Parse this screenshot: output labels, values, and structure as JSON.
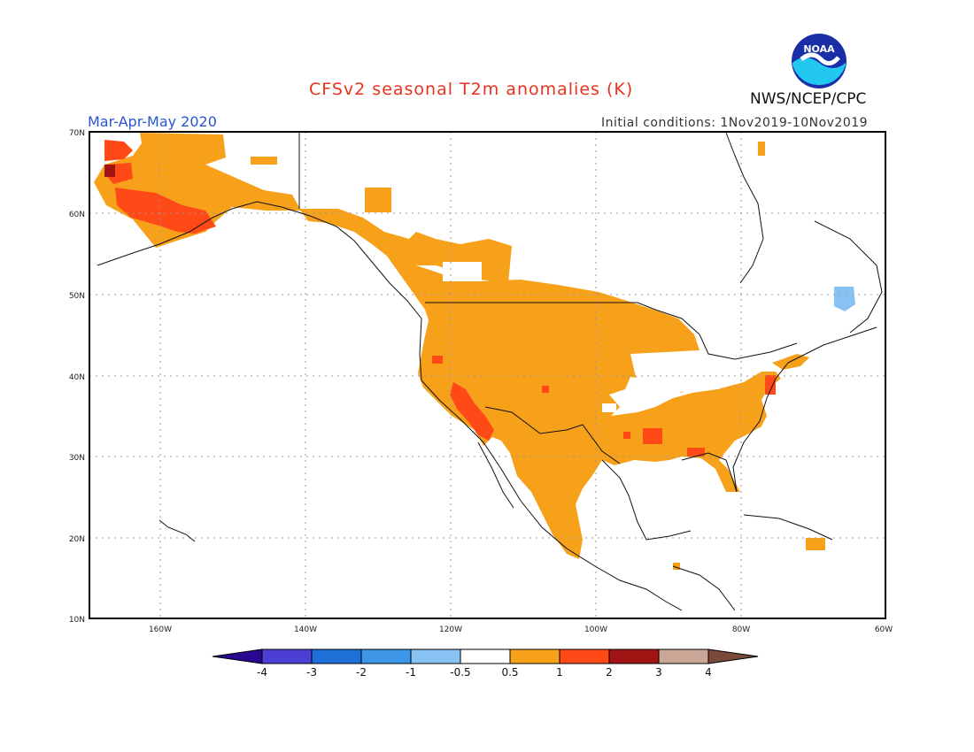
{
  "title": "CFSv2 seasonal T2m anomalies (K)",
  "season": "Mar-Apr-May 2020",
  "initial_conditions": "Initial conditions: 1Nov2019-10Nov2019",
  "agency": "NWS/NCEP/CPC",
  "logo": {
    "icon": "noaa-logo-icon",
    "text": "NOAA"
  },
  "map": {
    "region": "North America",
    "lon_range": [
      -172,
      -60
    ],
    "lat_range": [
      10,
      70
    ],
    "lat_ticks": [
      "70N",
      "60N",
      "50N",
      "40N",
      "30N",
      "20N",
      "10N"
    ],
    "lon_ticks": [
      "160W",
      "140W",
      "120W",
      "100W",
      "80W",
      "60W"
    ],
    "gridlines": "dotted"
  },
  "colorbar": {
    "labels": [
      "-4",
      "-3",
      "-2",
      "-1",
      "-0.5",
      "0.5",
      "1",
      "2",
      "3",
      "4"
    ],
    "colors": [
      "#2a0891",
      "#4b3fd6",
      "#1f6fd8",
      "#3d96e8",
      "#87c2f2",
      "#ffffff",
      "#f7a11a",
      "#ff4a18",
      "#a11414",
      "#c9a695",
      "#7a4a3a"
    ]
  },
  "anomaly_regions": [
    {
      "name": "Alaska & Yukon",
      "category": "0.5-1"
    },
    {
      "name": "Western Alaska",
      "category": "1-2"
    },
    {
      "name": "Pacific Northwest & British Columbia",
      "category": "0.5-1"
    },
    {
      "name": "Western & Central US",
      "category": "0.5-1"
    },
    {
      "name": "Southern California & Arizona",
      "category": "1-2"
    },
    {
      "name": "Southeast US",
      "category": "0.5-1"
    },
    {
      "name": "Mexico",
      "category": "0.5-1"
    },
    {
      "name": "Quebec",
      "category": "-1--0.5"
    }
  ]
}
